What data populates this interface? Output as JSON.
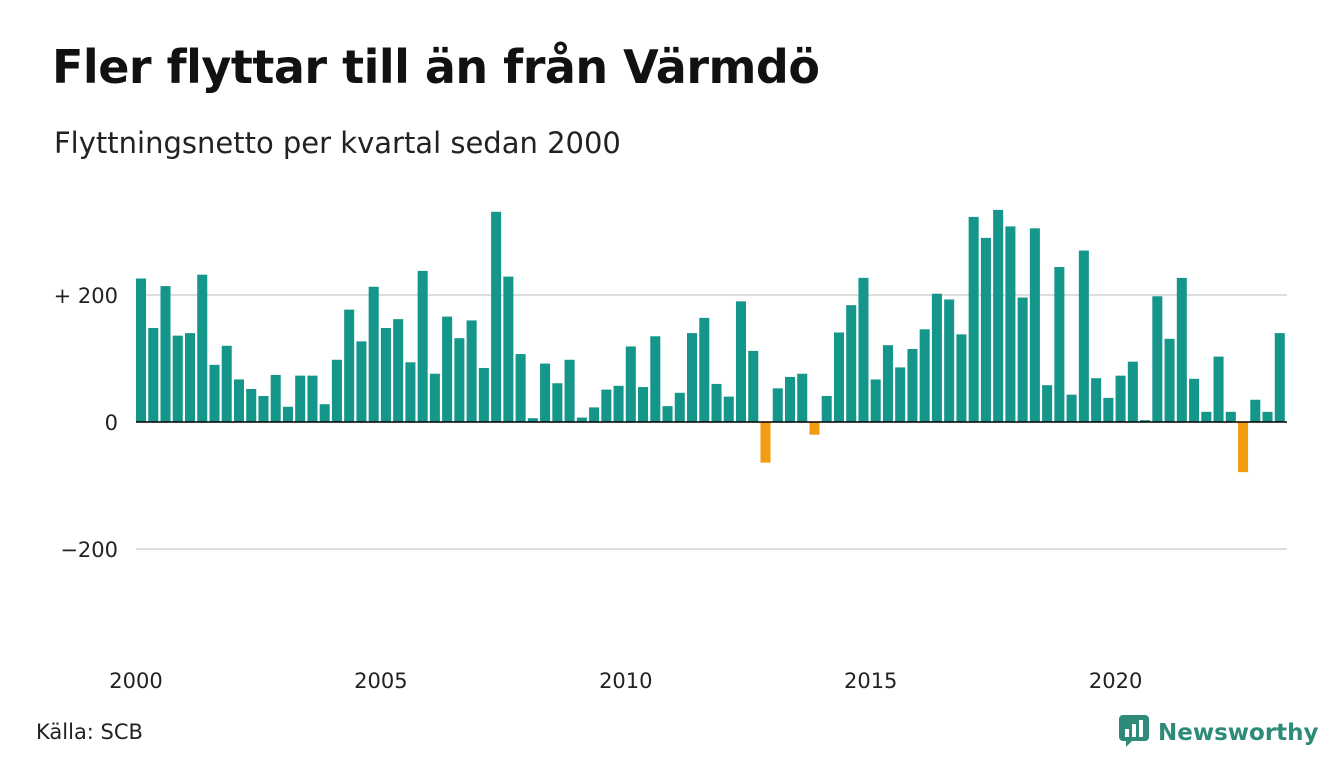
{
  "title": "Fler flyttar till än från Värmdö",
  "subtitle": "Flyttningsnetto per kvartal sedan 2000",
  "source": "Källa: SCB",
  "brand": {
    "name": "Newsworthy",
    "icon": "newsworthy-logo-icon"
  },
  "colors": {
    "positive": "#15968a",
    "negative": "#f39c12",
    "grid": "#dddddd",
    "zero": "#000000",
    "brand": "#2e8b7a"
  },
  "chart_data": {
    "type": "bar",
    "ylim": [
      -300,
      340
    ],
    "yticks": [
      {
        "value": 200,
        "label": "+ 200"
      },
      {
        "value": 0,
        "label": "0"
      },
      {
        "value": -200,
        "label": "−200"
      }
    ],
    "xticks": [
      {
        "index": 0,
        "label": "2000"
      },
      {
        "index": 20,
        "label": "2005"
      },
      {
        "index": 40,
        "label": "2010"
      },
      {
        "index": 60,
        "label": "2015"
      },
      {
        "index": 80,
        "label": "2020"
      }
    ],
    "start": "2000 Q1",
    "values": [
      226,
      148,
      214,
      136,
      140,
      232,
      90,
      120,
      67,
      52,
      41,
      74,
      24,
      73,
      73,
      28,
      98,
      177,
      127,
      213,
      148,
      162,
      94,
      238,
      76,
      166,
      132,
      160,
      85,
      331,
      229,
      107,
      6,
      92,
      61,
      98,
      7,
      23,
      51,
      57,
      119,
      55,
      135,
      25,
      46,
      140,
      164,
      60,
      40,
      190,
      112,
      -64,
      53,
      71,
      76,
      -20,
      41,
      141,
      184,
      227,
      67,
      121,
      86,
      115,
      146,
      202,
      193,
      138,
      323,
      290,
      334,
      308,
      196,
      305,
      58,
      244,
      43,
      270,
      69,
      38,
      73,
      95,
      3,
      198,
      131,
      227,
      68,
      16,
      103,
      16,
      -79,
      35,
      16,
      140
    ]
  }
}
